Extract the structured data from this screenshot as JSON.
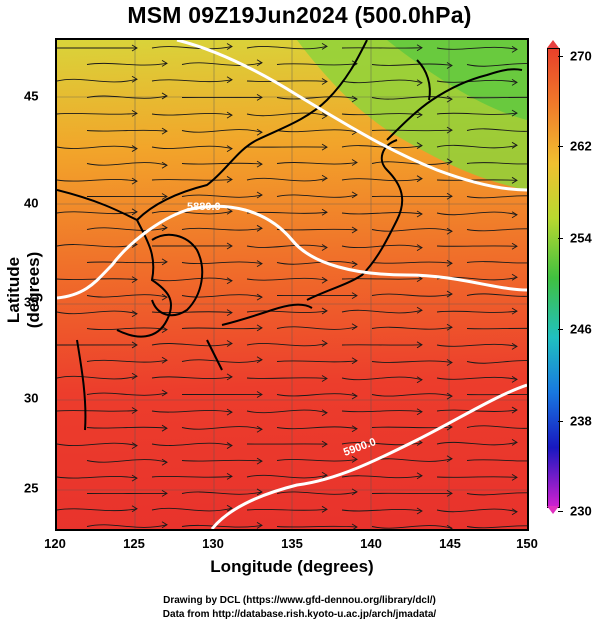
{
  "title": "MSM 09Z19Jun2024 (500.0hPa)",
  "xaxis": {
    "label": "Longitude (degrees)",
    "ticks": [
      "120",
      "125",
      "130",
      "135",
      "140",
      "145",
      "150"
    ],
    "range": [
      120,
      150
    ]
  },
  "yaxis": {
    "label": "Latitude  (degrees)",
    "ticks": [
      "45",
      "40",
      "35",
      "30",
      "25"
    ],
    "range": [
      22.4,
      47.6
    ]
  },
  "colorbar": {
    "ticks": [
      "270",
      "262",
      "254",
      "246",
      "238",
      "230"
    ],
    "range": [
      230,
      270
    ]
  },
  "contour_labels": [
    "5880.0",
    "5900.0"
  ],
  "credits": {
    "line1": "Drawing by DCL (https://www.gfd-dennou.org/library/dcl/)",
    "line2": "Data from http://database.rish.kyoto-u.ac.jp/arch/jmadata/"
  },
  "colors": {
    "warm": "#e8322c",
    "cool": "#40c040",
    "contour": "#ffffff",
    "coast": "#000000"
  }
}
